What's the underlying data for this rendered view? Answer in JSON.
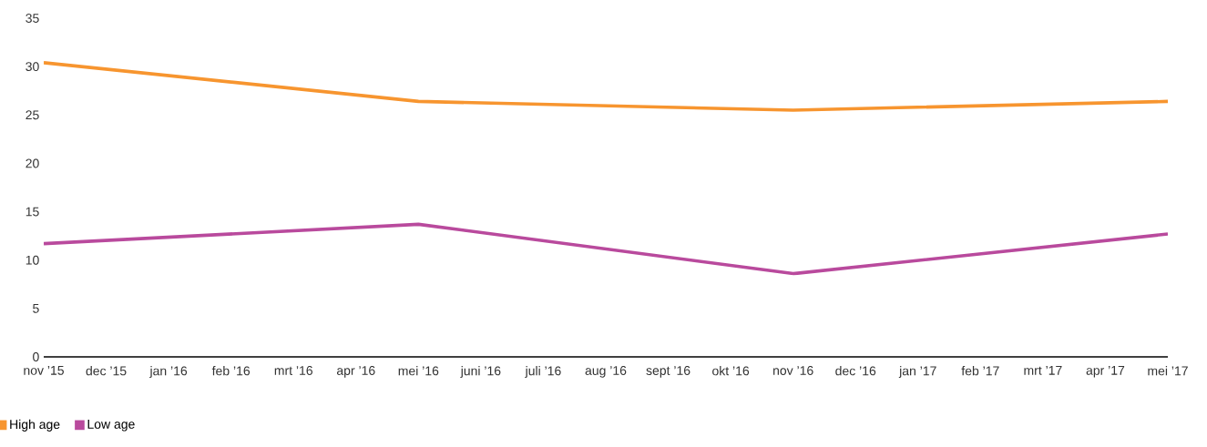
{
  "chart_data": {
    "type": "line",
    "x": [
      "2015-11",
      "2016-05",
      "2016-11",
      "2017-05"
    ],
    "series": [
      {
        "name": "High age",
        "color": "#f7952f",
        "values": [
          30.4,
          26.4,
          25.5,
          26.4
        ]
      },
      {
        "name": "Low age",
        "color": "#b94a9d",
        "values": [
          11.7,
          13.7,
          8.6,
          12.7
        ]
      }
    ],
    "xlim": [
      "2015-11",
      "2017-05"
    ],
    "xticks": [
      {
        "value": "2015-11",
        "label": "nov ’15"
      },
      {
        "value": "2015-12",
        "label": "dec ’15"
      },
      {
        "value": "2016-01",
        "label": "jan ’16"
      },
      {
        "value": "2016-02",
        "label": "feb ’16"
      },
      {
        "value": "2016-03",
        "label": "mrt ’16"
      },
      {
        "value": "2016-04",
        "label": "apr ’16"
      },
      {
        "value": "2016-05",
        "label": "mei ’16"
      },
      {
        "value": "2016-06",
        "label": "juni ’16"
      },
      {
        "value": "2016-07",
        "label": "juli ’16"
      },
      {
        "value": "2016-08",
        "label": "aug ’16"
      },
      {
        "value": "2016-09",
        "label": "sept ’16"
      },
      {
        "value": "2016-10",
        "label": "okt ’16"
      },
      {
        "value": "2016-11",
        "label": "nov ’16"
      },
      {
        "value": "2016-12",
        "label": "dec ’16"
      },
      {
        "value": "2017-01",
        "label": "jan ’17"
      },
      {
        "value": "2017-02",
        "label": "feb ’17"
      },
      {
        "value": "2017-03",
        "label": "mrt ’17"
      },
      {
        "value": "2017-04",
        "label": "apr ’17"
      },
      {
        "value": "2017-05",
        "label": "mei ’17"
      }
    ],
    "ylim": [
      0,
      35
    ],
    "yticks": [
      0,
      5,
      10,
      15,
      20,
      25,
      30,
      35
    ],
    "grid": false,
    "legend": "bottom left",
    "marker": "none",
    "line_style": "solid"
  }
}
